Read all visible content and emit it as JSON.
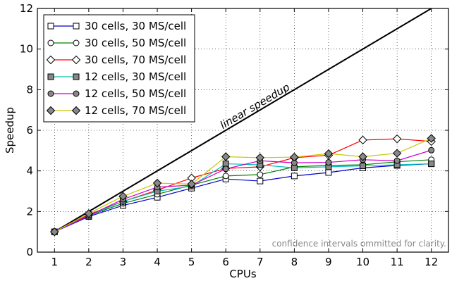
{
  "chart_data": {
    "type": "line",
    "xlabel": "CPUs",
    "ylabel": "Speedup",
    "x": [
      1,
      2,
      3,
      4,
      5,
      6,
      7,
      8,
      9,
      10,
      11,
      12
    ],
    "xlim": [
      0.5,
      12.5
    ],
    "ylim": [
      0,
      12
    ],
    "yticks": [
      0,
      2,
      4,
      6,
      8,
      10,
      12
    ],
    "grid": true,
    "legend_position": "top-left",
    "series": [
      {
        "name": "30 cells, 30 MS/cell",
        "color": "#0000cc",
        "marker": "square",
        "fill": "#ffffff",
        "values": [
          1.0,
          1.75,
          2.3,
          2.7,
          3.15,
          3.6,
          3.5,
          3.75,
          3.92,
          4.15,
          4.27,
          4.35
        ]
      },
      {
        "name": "30 cells, 50 MS/cell",
        "color": "#008000",
        "marker": "circle",
        "fill": "#ffffff",
        "values": [
          1.0,
          1.8,
          2.4,
          2.85,
          3.3,
          3.75,
          3.82,
          4.2,
          4.27,
          4.3,
          4.45,
          4.55
        ]
      },
      {
        "name": "30 cells, 70 MS/cell",
        "color": "#ff0000",
        "marker": "diamond",
        "fill": "#ffffff",
        "values": [
          1.0,
          1.85,
          2.5,
          3.05,
          3.65,
          4.12,
          4.2,
          4.65,
          4.77,
          5.52,
          5.58,
          5.45
        ]
      },
      {
        "name": "12 cells, 30 MS/cell",
        "color": "#00bfbf",
        "marker": "square",
        "fill": "#888888",
        "values": [
          1.0,
          1.8,
          2.5,
          3.0,
          3.25,
          4.35,
          4.3,
          4.15,
          4.2,
          4.25,
          4.3,
          4.35
        ]
      },
      {
        "name": "12 cells, 50 MS/cell",
        "color": "#cc00cc",
        "marker": "circle",
        "fill": "#888888",
        "values": [
          1.0,
          1.8,
          2.6,
          3.2,
          3.3,
          4.1,
          4.5,
          4.4,
          4.42,
          4.55,
          4.5,
          5.02
        ]
      },
      {
        "name": "12 cells, 70 MS/cell",
        "color": "#c8c800",
        "marker": "diamond",
        "fill": "#888888",
        "values": [
          1.0,
          1.9,
          2.75,
          3.4,
          3.35,
          4.7,
          4.65,
          4.68,
          4.85,
          4.7,
          4.87,
          5.6
        ]
      }
    ],
    "reference_line": {
      "label": "linear speedup",
      "x": [
        1,
        12
      ],
      "y": [
        1,
        12
      ]
    },
    "annotations": [
      {
        "text": "confidence intervals ommitted for clarity."
      }
    ]
  }
}
